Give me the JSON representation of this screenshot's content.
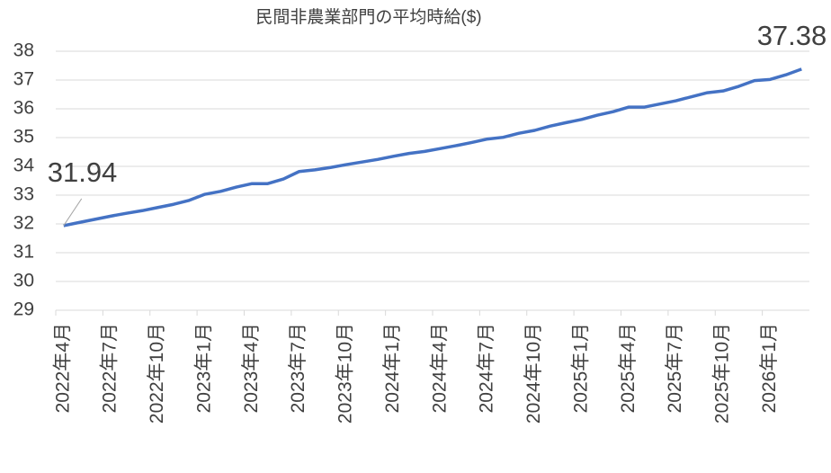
{
  "chart_data": {
    "type": "line",
    "title": "民間非農業部門の平均時給($)",
    "categories": [
      "2022年4月",
      null,
      null,
      "2022年7月",
      null,
      null,
      "2022年10月",
      null,
      null,
      "2023年1月",
      null,
      null,
      "2023年4月",
      null,
      null,
      "2023年7月",
      null,
      null,
      "2023年10月",
      null,
      null,
      "2024年1月",
      null,
      null,
      "2024年4月",
      null,
      null,
      "2024年7月",
      null,
      null,
      "2024年10月",
      null,
      null,
      "2025年1月",
      null,
      null,
      "2025年4月",
      null,
      null,
      "2025年7月",
      null,
      null,
      "2025年10月",
      null,
      null,
      "2026年1月",
      null,
      null
    ],
    "series": [
      {
        "name": "平均時給",
        "color": "#4472c4",
        "values": [
          31.94,
          32.05,
          32.16,
          32.27,
          32.37,
          32.46,
          32.57,
          32.68,
          32.82,
          33.03,
          33.13,
          33.28,
          33.4,
          33.4,
          33.56,
          33.82,
          33.88,
          33.96,
          34.06,
          34.15,
          34.24,
          34.35,
          34.45,
          34.52,
          34.62,
          34.72,
          34.83,
          34.95,
          35.01,
          35.15,
          35.25,
          35.4,
          35.52,
          35.63,
          35.78,
          35.9,
          36.06,
          36.06,
          36.17,
          36.28,
          36.42,
          36.56,
          36.62,
          36.78,
          36.98,
          37.02,
          37.18,
          37.38
        ]
      }
    ],
    "ylim": [
      29,
      38
    ],
    "yticks": [
      29,
      30,
      31,
      32,
      33,
      34,
      35,
      36,
      37,
      38
    ],
    "grid": true
  }
}
